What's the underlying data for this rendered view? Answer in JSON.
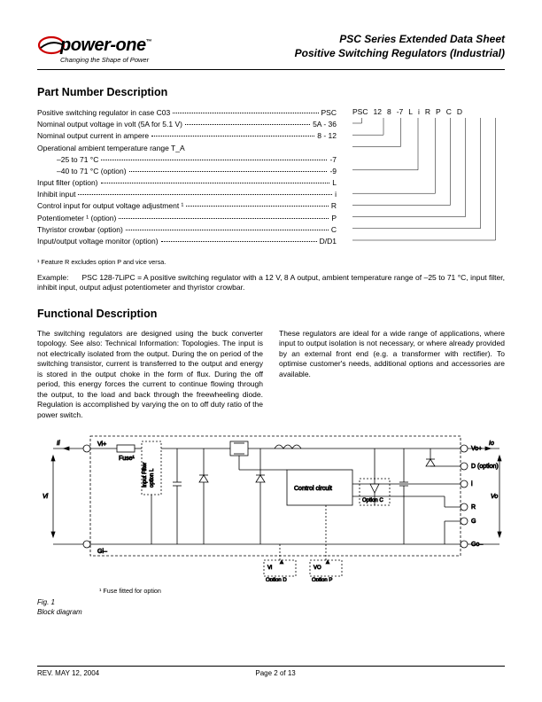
{
  "header": {
    "logo_main": "power-one",
    "logo_tm": "™",
    "logo_sub": "Changing the Shape of Power",
    "title_line1": "PSC Series Extended Data Sheet",
    "title_line2": "Positive Switching Regulators (Industrial)"
  },
  "section1_title": "Part Number Description",
  "part_code": [
    "PSC",
    "12",
    "8",
    "-7",
    "L",
    "i",
    "R",
    "P",
    "C",
    "D"
  ],
  "desc_rows": [
    {
      "label": "Positive switching regulator in case C03",
      "val": "PSC",
      "indent": false
    },
    {
      "label": "Nominal output voltage in volt (5A for 5.1 V)",
      "val": "5A - 36",
      "indent": false
    },
    {
      "label": "Nominal output current in ampere",
      "val": "8 - 12",
      "indent": false
    },
    {
      "label": "Operational ambient temperature range T_A",
      "val": "",
      "indent": false,
      "nodots": true
    },
    {
      "label": "–25 to 71 °C",
      "val": "-7",
      "indent": true
    },
    {
      "label": "–40 to 71 °C (option)",
      "val": "-9",
      "indent": true
    },
    {
      "label": "Input filter (option)",
      "val": "L",
      "indent": false
    },
    {
      "label": "Inhibit input",
      "val": "i",
      "indent": false
    },
    {
      "label": "Control input for output voltage adjustment ¹",
      "val": "R",
      "indent": false
    },
    {
      "label": "Potentiometer ¹ (option)",
      "val": "P",
      "indent": false
    },
    {
      "label": "Thyristor crowbar (option)",
      "val": "C",
      "indent": false
    },
    {
      "label": "Input/output voltage monitor (option)",
      "val": "D/D1",
      "indent": false
    }
  ],
  "footnote": "¹ Feature R excludes option P and vice versa.",
  "example_label": "Example:",
  "example_text": "PSC 128-7LiPC = A positive switching regulator with a 12 V, 8 A output, ambient temperature range of –25 to 71 °C, input filter, inhibit input, output adjust potentiometer and thyristor crowbar.",
  "section2_title": "Functional Description",
  "func_col1": "The switching regulators are designed using the buck converter topology. See also: Technical Information: Topologies. The input is not electrically isolated from the output. During the on period of the switching transistor, current is transferred to the output and energy is stored in the output choke in the form of flux. During the off period, this energy forces the current to continue flowing through the output, to the load and back through the freewheeling diode. Regulation is accomplished by varying the on to off duty ratio of the power switch.",
  "func_col2": "These regulators are ideal for a wide range of applications, where input to output isolation is not necessary, or where already provided by an external front end (e.g. a transformer with rectifier). To optimise customer's needs, additional options and accessories are available.",
  "diagram": {
    "labels": {
      "vi_plus": "Vi+",
      "gi_minus": "Gi–",
      "fuse": "Fuse¹",
      "input_filter": "Input Filter\noption L",
      "control": "Control circuit",
      "option_c": "Option C",
      "option_d_lbl": "Option D",
      "option_p_lbl": "Option P",
      "vi_d": "Vi",
      "vo_d": "VO",
      "vo_plus": "Vo+",
      "d_opt": "D (option)",
      "i_lbl": "i",
      "r_lbl": "R",
      "g_lbl": "G",
      "go_minus": "Go–",
      "ii": "Ii",
      "io": "Io",
      "vi_arrow": "Vi",
      "vo_arrow": "Vo"
    },
    "note": "¹ Fuse fitted for option"
  },
  "fig_label_1": "Fig. 1",
  "fig_label_2": "Block diagram",
  "footer": {
    "rev": "REV. MAY 12, 2004",
    "page": "Page 2 of 13"
  },
  "colors": {
    "text": "#000000",
    "bg": "#ffffff",
    "logo_red": "#cc0000"
  }
}
